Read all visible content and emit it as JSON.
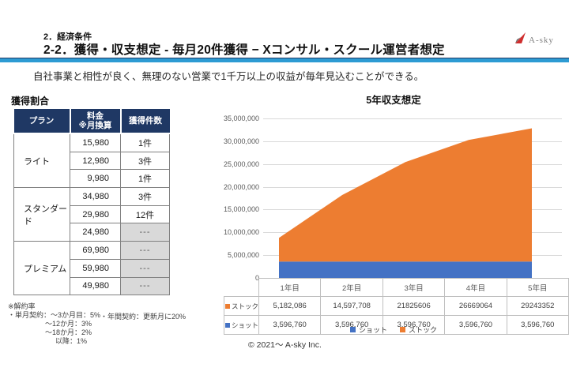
{
  "page": {
    "kicker": "2．経済条件",
    "title": "2-2．獲得・収支想定 - 毎月20件獲得 − Xコンサル・スクール運営者想定",
    "banner": "自社事業と相性が良く、無理のない営業で1千万以上の収益が毎年見込むことができる。",
    "footer": "© 2021～ A-sky Inc.",
    "colors": {
      "accent_line": "#2d9bd3",
      "table_header_navy": "#1f3864",
      "series_blue": "#4472c4",
      "series_orange": "#ed7d31",
      "empty_cell_gray": "#d9d9d9"
    }
  },
  "logo": {
    "text": "A-sky",
    "icon": "paper-plane-icon"
  },
  "acquisition_table": {
    "title": "獲得割合",
    "headers": {
      "plan": "プラン",
      "price_line1": "料金",
      "price_line2": "※月換算",
      "count": "獲得件数"
    },
    "groups": [
      {
        "plan": "ライト",
        "rows": [
          [
            "15,980",
            "1件"
          ],
          [
            "12,980",
            "3件"
          ],
          [
            "9,980",
            "1件"
          ]
        ]
      },
      {
        "plan": "スタンダード",
        "rows": [
          [
            "34,980",
            "3件"
          ],
          [
            "29,980",
            "12件"
          ],
          [
            "24,980",
            "---"
          ]
        ]
      },
      {
        "plan": "プレミアム",
        "rows": [
          [
            "69,980",
            "---"
          ],
          [
            "59,980",
            "---"
          ],
          [
            "49,980",
            "---"
          ]
        ]
      }
    ]
  },
  "notes": {
    "title": "※解約率",
    "monthly_label": "・単月契約：～3か月目：5%",
    "monthly_lines": [
      "～12か月：3%",
      "～18か月：2%",
      "以降：1%"
    ],
    "annual": "・年間契約：更新月に20%"
  },
  "chart_data": {
    "type": "area",
    "stacked": true,
    "title": "5年収支想定",
    "categories": [
      "1年目",
      "2年目",
      "3年目",
      "4年目",
      "5年目"
    ],
    "series": [
      {
        "name": "ショット",
        "color": "#4472c4",
        "values": [
          3596760,
          3596760,
          3596760,
          3596760,
          3596760
        ],
        "display": [
          "3,596,760",
          "3,596,760",
          "3,596,760",
          "3,596,760",
          "3,596,760"
        ]
      },
      {
        "name": "ストック",
        "color": "#ed7d31",
        "values": [
          5182086,
          14597708,
          21825606,
          26669064,
          29243352
        ],
        "display": [
          "5,182,086",
          "14,597,708",
          "21825606",
          "26669064",
          "29243352"
        ]
      }
    ],
    "ylim": [
      0,
      35000000
    ],
    "ytick_step": 5000000,
    "ytick_labels": [
      "0",
      "5,000,000",
      "10,000,000",
      "15,000,000",
      "20,000,000",
      "25,000,000",
      "30,000,000",
      "35,000,000"
    ],
    "legend": [
      "ショット",
      "ストック"
    ],
    "legend_position": "bottom",
    "grid": true,
    "xlabel": "",
    "ylabel": ""
  }
}
